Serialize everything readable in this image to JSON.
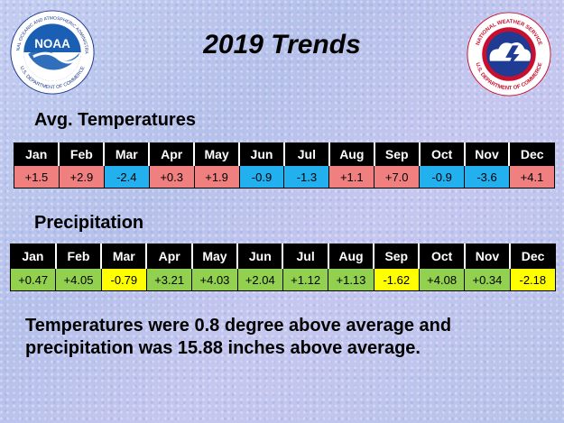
{
  "title": "2019 Trends",
  "logos": {
    "noaa_text": "NOAA",
    "noaa_ring_text": "NATIONAL OCEANIC AND ATMOSPHERIC ADMINISTRATION",
    "noaa_ring_bottom": "U.S. DEPARTMENT OF COMMERCE",
    "nws_ring_top": "NATIONAL WEATHER SERVICE",
    "nws_ring_bottom": "U.S. DEPARTMENT OF COMMERCE"
  },
  "temperatures": {
    "heading": "Avg. Temperatures",
    "months": [
      "Jan",
      "Feb",
      "Mar",
      "Apr",
      "May",
      "Jun",
      "Jul",
      "Aug",
      "Sep",
      "Oct",
      "Nov",
      "Dec"
    ],
    "values": [
      "+1.5",
      "+2.9",
      "-2.4",
      "+0.3",
      "+1.9",
      "-0.9",
      "-1.3",
      "+1.1",
      "+7.0",
      "-0.9",
      "-3.6",
      "+4.1"
    ]
  },
  "precipitation": {
    "heading": "Precipitation",
    "months": [
      "Jan",
      "Feb",
      "Mar",
      "Apr",
      "May",
      "Jun",
      "Jul",
      "Aug",
      "Sep",
      "Oct",
      "Nov",
      "Dec"
    ],
    "values": [
      "+0.47",
      "+4.05",
      "-0.79",
      "+3.21",
      "+4.03",
      "+2.04",
      "+1.12",
      "+1.13",
      "-1.62",
      "+4.08",
      "+0.34",
      "-2.18"
    ]
  },
  "colors": {
    "temp_above": "#f08080",
    "temp_below": "#22b0ee",
    "precip_above": "#92d050",
    "precip_below": "#ffff00",
    "header_bg": "#000000"
  },
  "summary": {
    "line1": "Temperatures were 0.8 degree above average and",
    "line2": "precipitation was 15.88 inches above average."
  }
}
